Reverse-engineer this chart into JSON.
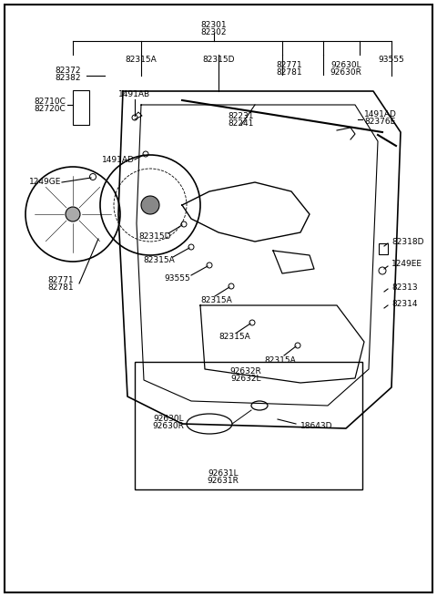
{
  "bg_color": "#ffffff",
  "border_color": "#000000",
  "line_color": "#000000",
  "text_color": "#000000",
  "figsize": [
    4.8,
    6.55
  ],
  "dpi": 100,
  "labels": {
    "top_center": [
      "82301",
      "82302"
    ],
    "top_bar_left": "82315A",
    "top_bar_mid": "82315D",
    "top_bar_right1": [
      "82771",
      "82781"
    ],
    "top_bar_right2": [
      "92630L",
      "92630R"
    ],
    "top_bar_right3": "93555",
    "left_col1": [
      "82372",
      "82382"
    ],
    "left_col2": [
      "82710C",
      "82720C"
    ],
    "left_mid": "1491AB",
    "left_1491ad": "1491AD",
    "left_1249ge": "1249GE",
    "left_82315d": "82315D",
    "left_82315a_1": "82315A",
    "left_93555": "93555",
    "left_82315a_2": "82315A",
    "mid_82231": [
      "82231",
      "82241"
    ],
    "mid_82315a_3": "82315A",
    "mid_82315a_4": "82315A",
    "right_1491ad": "1491AD",
    "right_82376e": "82376E",
    "right_82318d": "82318D",
    "right_1249ee": "1249EE",
    "right_82313": "82313",
    "right_82314": "82314",
    "bottom_82771": [
      "82771",
      "82781"
    ],
    "inset_92632r": [
      "92632R",
      "92632L"
    ],
    "inset_18643d": "18643D",
    "inset_92630": [
      "92630L",
      "92630R"
    ],
    "inset_92631": [
      "92631L",
      "92631R"
    ]
  }
}
